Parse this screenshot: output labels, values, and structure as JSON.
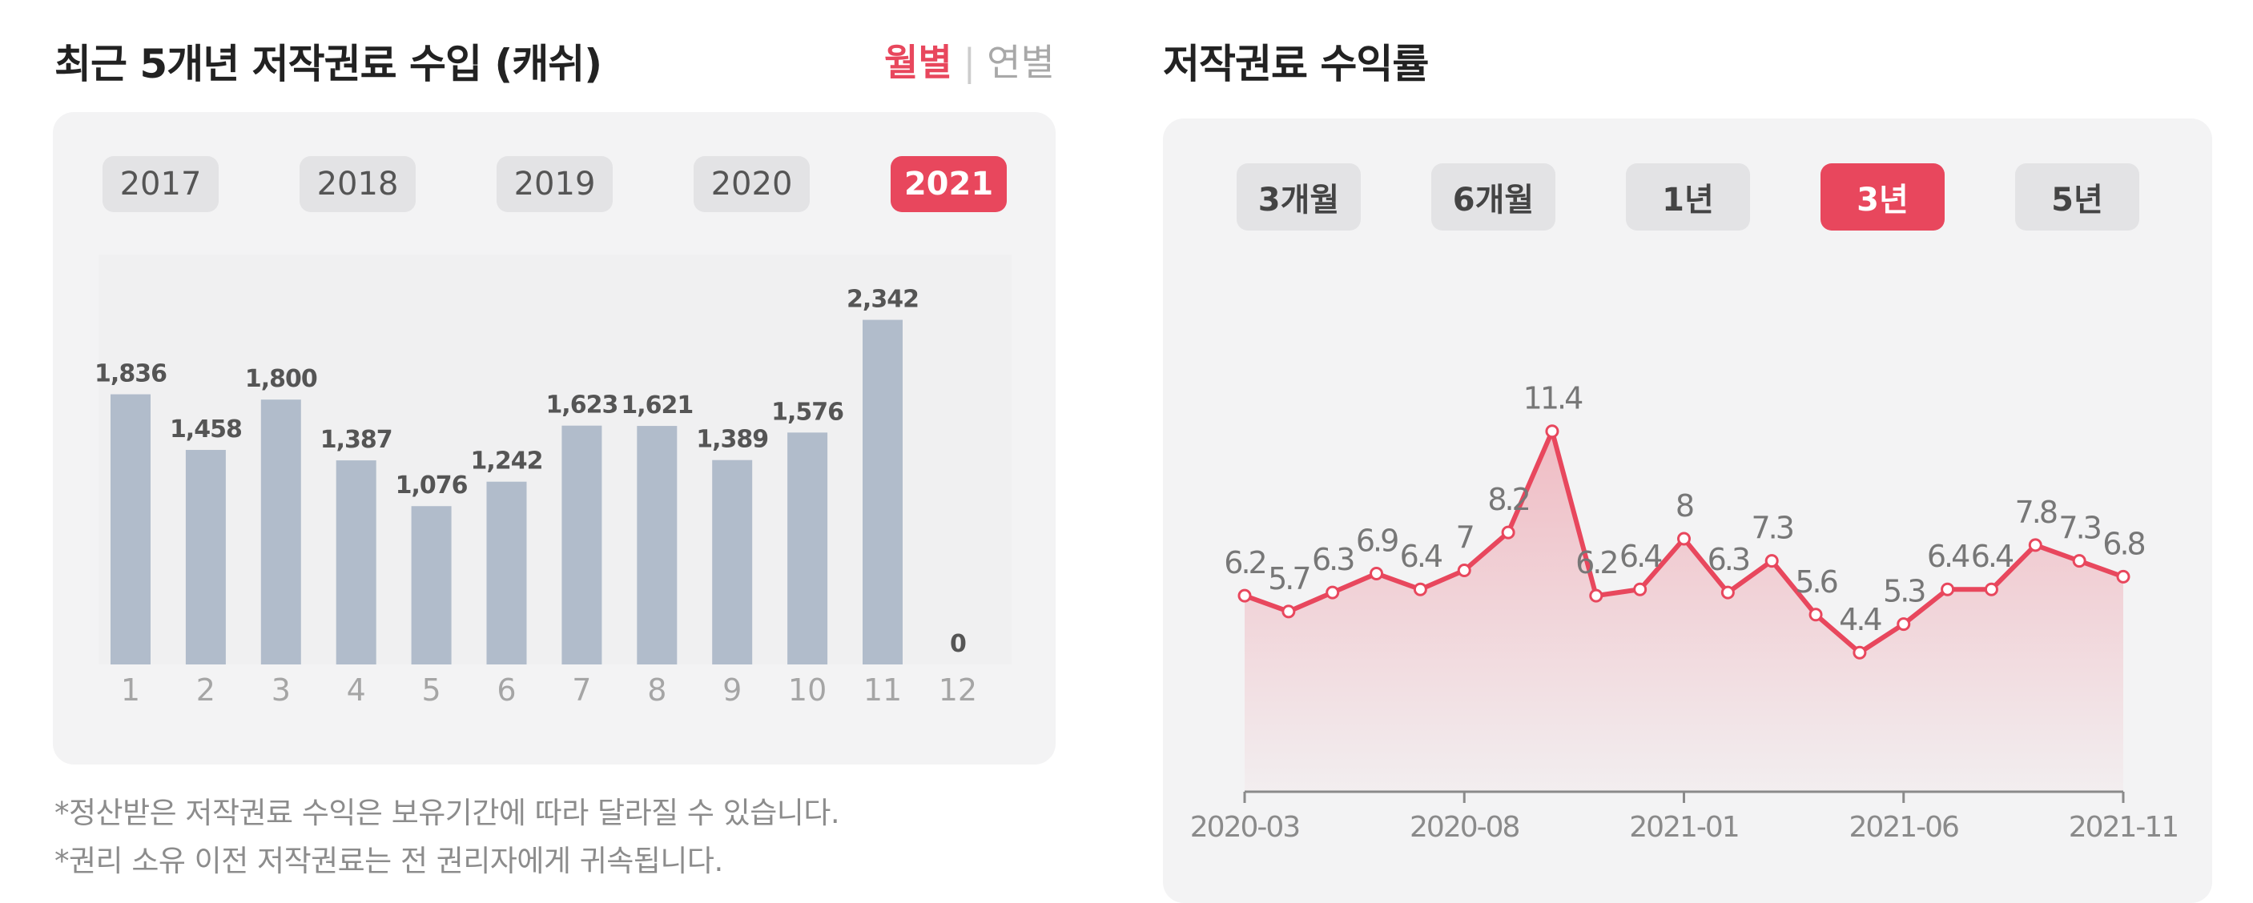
{
  "left": {
    "title": "최근 5개년 저작권료 수입 (캐쉬)",
    "toggle": {
      "monthly": "월별",
      "yearly": "연별",
      "selected": "monthly"
    },
    "year_tabs": [
      "2017",
      "2018",
      "2019",
      "2020",
      "2021"
    ],
    "active_year": "2021",
    "notes": [
      "*정산받은 저작권료 수익은 보유기간에 따라 달라질 수 있습니다.",
      "*권리 소유 이전 저작권료는 전 권리자에게 귀속됩니다."
    ]
  },
  "right": {
    "title": "저작권료 수익률",
    "range_tabs": [
      "3개월",
      "6개월",
      "1년",
      "3년",
      "5년"
    ],
    "active_range": "3년"
  },
  "colors": {
    "accent": "#e8475d",
    "bar": "#b1bccb",
    "panel": "#f3f3f4"
  },
  "chart_data": [
    {
      "type": "bar",
      "title": "최근 5개년 저작권료 수입 (캐쉬)",
      "categories": [
        "1",
        "2",
        "3",
        "4",
        "5",
        "6",
        "7",
        "8",
        "9",
        "10",
        "11",
        "12"
      ],
      "values": [
        1836,
        1458,
        1800,
        1387,
        1076,
        1242,
        1623,
        1621,
        1389,
        1576,
        2342,
        0
      ],
      "labels": [
        "1,836",
        "1,458",
        "1,800",
        "1,387",
        "1,076",
        "1,242",
        "1,623",
        "1,621",
        "1,389",
        "1,576",
        "2,342",
        "0"
      ],
      "ylim": [
        0,
        2500
      ],
      "grid": false
    },
    {
      "type": "area",
      "title": "저작권료 수익률",
      "values": [
        6.2,
        5.7,
        6.3,
        6.9,
        6.4,
        7,
        8.2,
        11.4,
        6.2,
        6.4,
        8,
        6.3,
        7.3,
        5.6,
        4.4,
        5.3,
        6.4,
        6.4,
        7.8,
        7.3,
        6.8
      ],
      "labels": [
        "6.2",
        "5.7",
        "6.3",
        "6.9",
        "6.4",
        "7",
        "8.2",
        "11.4",
        "6.2",
        "6.4",
        "8",
        "6.3",
        "7.3",
        "5.6",
        "4.4",
        "5.3",
        "6.4",
        "6.4",
        "7.8",
        "7.3",
        "6.8"
      ],
      "x_ticks": [
        {
          "index": 0,
          "label": "2020-03"
        },
        {
          "index": 5,
          "label": "2020-08"
        },
        {
          "index": 10,
          "label": "2021-01"
        },
        {
          "index": 15,
          "label": "2021-06"
        },
        {
          "index": 20,
          "label": "2021-11"
        }
      ],
      "ylim": [
        0,
        12
      ],
      "grid": false
    }
  ]
}
